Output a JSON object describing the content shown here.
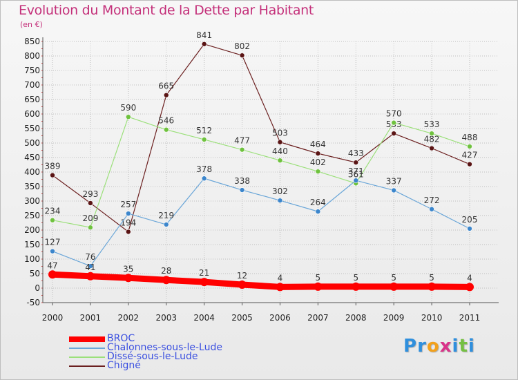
{
  "header": {
    "title": "Evolution du Montant de la Dette par Habitant",
    "unit": "(en €)"
  },
  "colors": {
    "title": "#c4307a",
    "legend_text": "#3a4fe0",
    "grid": "#bfbfbf"
  },
  "logo": {
    "text": "Proxiti",
    "letters": [
      {
        "ch": "P",
        "color": "#2f8fdd"
      },
      {
        "ch": "r",
        "color": "#2f8fdd"
      },
      {
        "ch": "o",
        "color": "#f2a11c"
      },
      {
        "ch": "x",
        "color": "#d9338a"
      },
      {
        "ch": "i",
        "color": "#2f8fdd"
      },
      {
        "ch": "t",
        "color": "#75c043"
      },
      {
        "ch": "i",
        "color": "#2f8fdd"
      }
    ]
  },
  "chart_data": {
    "type": "line",
    "title": "Evolution du Montant de la Dette par Habitant",
    "subtitle": "(en €)",
    "x": [
      "2000",
      "2001",
      "2002",
      "2003",
      "2004",
      "2005",
      "2006",
      "2007",
      "2008",
      "2009",
      "2010",
      "2011"
    ],
    "ylim": [
      -50,
      850
    ],
    "yticks": [
      -50,
      0,
      50,
      100,
      150,
      200,
      250,
      300,
      350,
      400,
      450,
      500,
      550,
      600,
      650,
      700,
      750,
      800,
      850
    ],
    "grid": true,
    "legend_position": "bottom-left",
    "series": [
      {
        "name": "Chigné",
        "color": "#6b1f1f",
        "point_color": "#5a1414",
        "width": 1.2,
        "values": [
          389,
          293,
          194,
          665,
          841,
          802,
          503,
          464,
          433,
          533,
          482,
          427
        ]
      },
      {
        "name": "Dissé-sous-le-Lude",
        "color": "#9be07a",
        "point_color": "#6fc23e",
        "width": 1.2,
        "values": [
          234,
          209,
          590,
          546,
          512,
          477,
          440,
          402,
          361,
          570,
          533,
          488
        ]
      },
      {
        "name": "Chalonnes-sous-le-Lude",
        "color": "#6aa6d8",
        "point_color": "#3c86cc",
        "width": 1.2,
        "values": [
          127,
          76,
          257,
          219,
          378,
          338,
          302,
          264,
          371,
          337,
          272,
          205
        ]
      },
      {
        "name": "BROC",
        "color": "#ff0000",
        "point_color": "#ff0000",
        "width": 9,
        "values": [
          47,
          41,
          35,
          28,
          21,
          12,
          4,
          5,
          5,
          5,
          5,
          4
        ]
      }
    ],
    "legend_order": [
      "BROC",
      "Chalonnes-sous-le-Lude",
      "Dissé-sous-le-Lude",
      "Chigné"
    ]
  }
}
